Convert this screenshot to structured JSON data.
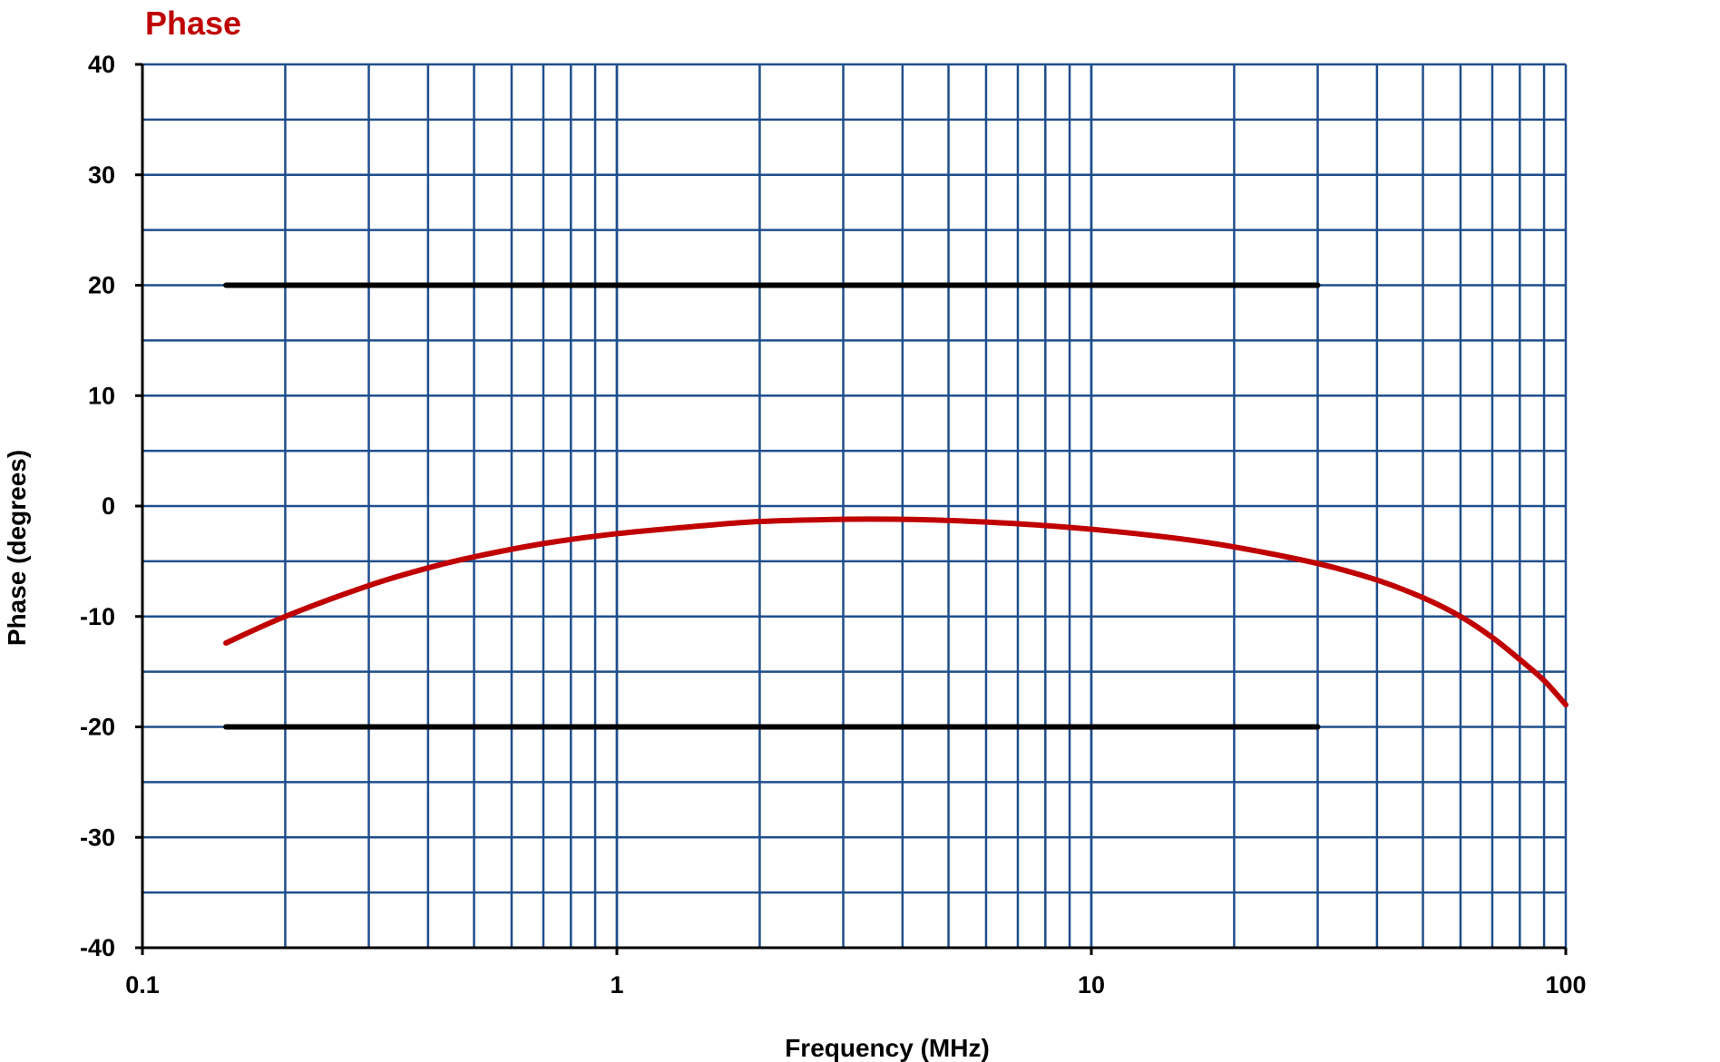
{
  "chart_data": {
    "type": "line",
    "title": "Phase",
    "xlabel": "Frequency (MHz)",
    "ylabel": "Phase (degrees)",
    "x_scale": "log",
    "xlim": [
      0.1,
      100
    ],
    "ylim": [
      -40,
      40
    ],
    "x_tick_labels": [
      "0.1",
      "1",
      "10",
      "100"
    ],
    "y_tick_labels": [
      "40",
      "30",
      "20",
      "10",
      "0",
      "-10",
      "-20",
      "-30",
      "-40"
    ],
    "grid": true,
    "series": [
      {
        "color": "#c00000",
        "x": [
          0.15,
          0.2,
          0.3,
          0.4,
          0.5,
          0.7,
          1,
          1.5,
          2,
          3,
          4,
          5,
          7,
          10,
          15,
          20,
          30,
          40,
          50,
          60,
          70,
          80,
          90,
          100
        ],
        "y": [
          -12.4,
          -10,
          -7.2,
          -5.6,
          -4.6,
          -3.4,
          -2.5,
          -1.8,
          -1.4,
          -1.2,
          -1.2,
          -1.3,
          -1.6,
          -2.1,
          -2.9,
          -3.7,
          -5.2,
          -6.7,
          -8.3,
          -10,
          -11.9,
          -13.9,
          -15.8,
          -18
        ]
      },
      {
        "color": "#000000",
        "x": [
          0.15,
          30
        ],
        "y": [
          20,
          20
        ]
      },
      {
        "color": "#000000",
        "x": [
          0.15,
          30
        ],
        "y": [
          -20,
          -20
        ]
      }
    ]
  },
  "colors": {
    "grid": "#1f4e8c",
    "title": "#c00000",
    "axis": "#000000"
  }
}
